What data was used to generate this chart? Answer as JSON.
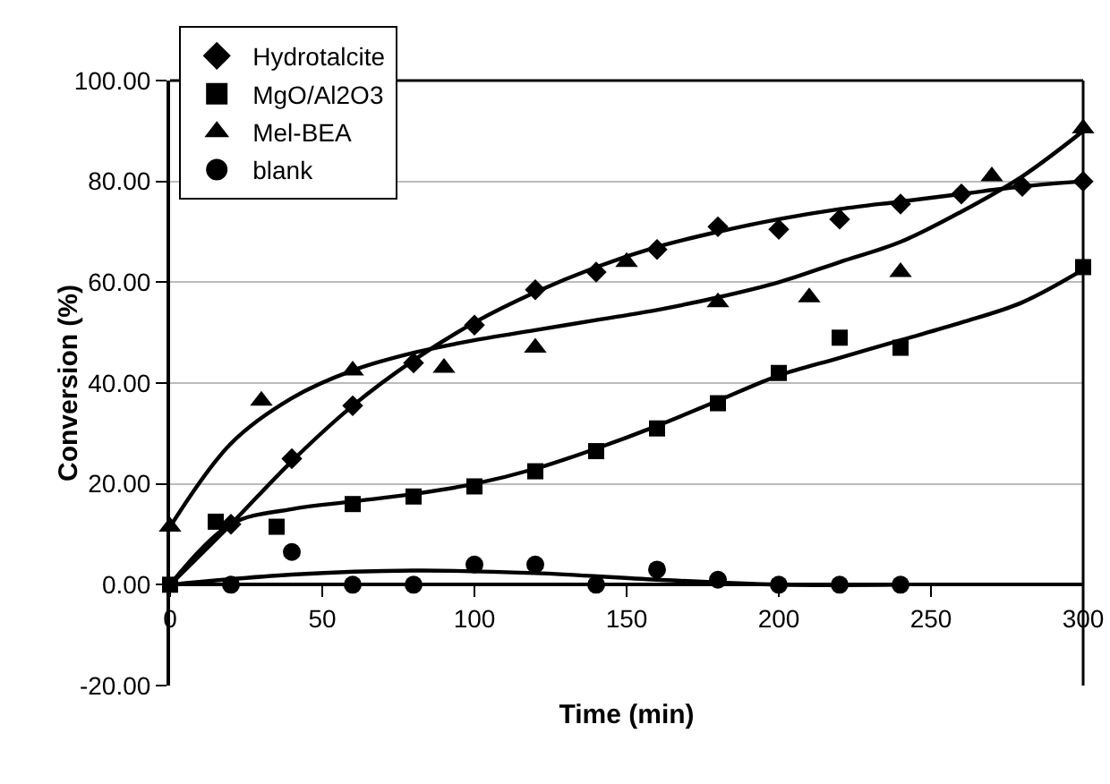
{
  "chart_data": {
    "type": "scatter",
    "xlabel": "Time (min)",
    "ylabel": "Conversion (%)",
    "xlim": [
      0,
      300
    ],
    "xticks": [
      0,
      50,
      100,
      150,
      200,
      250,
      300
    ],
    "ylim": [
      -20,
      100
    ],
    "yticks": [
      {
        "value": -20,
        "label": "-20.00"
      },
      {
        "value": 0,
        "label": "0.00"
      },
      {
        "value": 20,
        "label": "20.00"
      },
      {
        "value": 40,
        "label": "40.00"
      },
      {
        "value": 60,
        "label": "60.00"
      },
      {
        "value": 80,
        "label": "80.00"
      },
      {
        "value": 100,
        "label": "100.00"
      }
    ],
    "grid": "y",
    "legend": "top left",
    "series": [
      {
        "name": "Hydrotalcite",
        "color": "#000000",
        "marker": "diamond",
        "x": [
          20,
          40,
          60,
          80,
          100,
          120,
          140,
          160,
          180,
          200,
          220,
          240,
          260,
          280,
          300
        ],
        "values": [
          12,
          25,
          35.5,
          44,
          51.5,
          58.5,
          62,
          66.5,
          71,
          70.5,
          72.5,
          75.5,
          77.5,
          79,
          80
        ]
      },
      {
        "name": "MgO/Al2O3",
        "color": "#000000",
        "marker": "square",
        "x": [
          0,
          15,
          35,
          60,
          80,
          100,
          120,
          140,
          160,
          180,
          200,
          220,
          240,
          300
        ],
        "values": [
          0,
          12.5,
          11.5,
          16,
          17.5,
          19.5,
          22.5,
          26.5,
          31,
          36,
          42,
          49,
          47,
          63
        ]
      },
      {
        "name": "Mel-BEA",
        "color": "#000000",
        "marker": "triangle",
        "x": [
          0,
          30,
          60,
          90,
          120,
          150,
          180,
          210,
          240,
          270,
          300
        ],
        "values": [
          11.5,
          36.5,
          42.5,
          43,
          47,
          64,
          56,
          57,
          62,
          81,
          90.5
        ]
      },
      {
        "name": "blank",
        "color": "#000000",
        "marker": "circle",
        "x": [
          20,
          40,
          60,
          80,
          100,
          120,
          140,
          160,
          180,
          200,
          220,
          240
        ],
        "values": [
          0,
          6.5,
          0,
          0,
          4,
          4,
          0,
          3,
          1,
          0,
          0,
          0
        ]
      },
      {
        "type": "line",
        "color": "#000000",
        "marker": "none",
        "line_style": "solid",
        "x": [
          0,
          20,
          40,
          60,
          80,
          100,
          120,
          140,
          160,
          180,
          200,
          220,
          240,
          260,
          280,
          300
        ],
        "values": [
          0,
          12,
          24.5,
          35.5,
          44.5,
          52,
          58,
          63,
          67,
          70,
          72.5,
          74.5,
          76,
          77.5,
          79,
          80
        ]
      },
      {
        "type": "line",
        "color": "#000000",
        "marker": "none",
        "line_style": "solid",
        "x": [
          0,
          20,
          40,
          60,
          80,
          100,
          120,
          140,
          160,
          180,
          200,
          220,
          240,
          260,
          280,
          300
        ],
        "values": [
          0,
          12,
          15,
          16.5,
          18,
          20,
          23,
          27,
          31.5,
          36.5,
          41.5,
          45,
          48.5,
          52,
          56,
          62.5
        ]
      },
      {
        "type": "line",
        "color": "#000000",
        "marker": "none",
        "line_style": "solid",
        "x": [
          0,
          20,
          40,
          60,
          80,
          100,
          120,
          140,
          160,
          180,
          200,
          220,
          240,
          260,
          280,
          300
        ],
        "values": [
          11.5,
          28,
          37,
          42.5,
          46,
          48.5,
          50.5,
          52.5,
          54.5,
          57,
          60,
          64,
          68,
          74,
          81,
          90
        ]
      },
      {
        "type": "line",
        "color": "#000000",
        "marker": "none",
        "line_style": "solid",
        "x": [
          0,
          40,
          80,
          120,
          160,
          200,
          240
        ],
        "values": [
          0,
          2,
          2.8,
          2.3,
          1,
          0,
          0
        ]
      }
    ]
  }
}
